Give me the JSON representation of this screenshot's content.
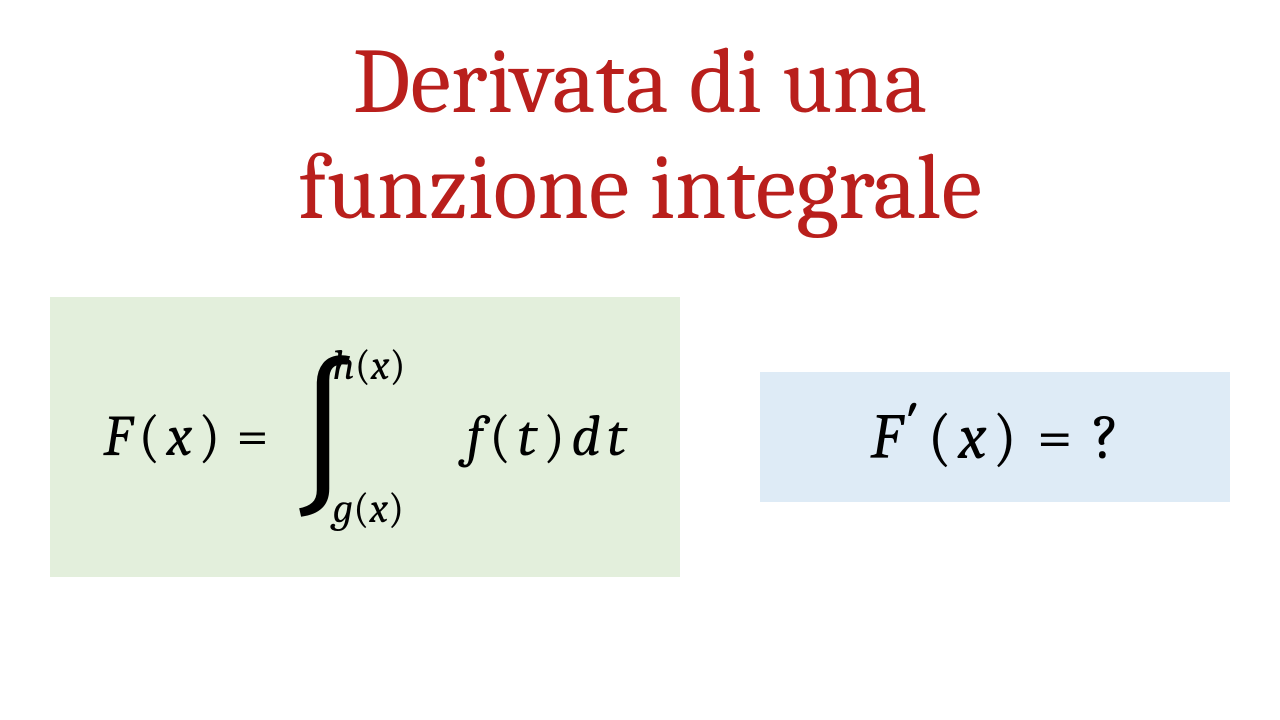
{
  "title": {
    "line1": "Derivata di una",
    "line2": "funzione integrale",
    "color": "#b91f1c",
    "fontsize": 92
  },
  "formula_left": {
    "background_color": "#e3efdc",
    "text_color": "#000000",
    "lhs_F": "F",
    "lhs_open": "(",
    "lhs_x": "x",
    "lhs_close": ")",
    "equals": "=",
    "upper_h": "h",
    "upper_open": "(",
    "upper_x": "x",
    "upper_close": ")",
    "lower_g": "g",
    "lower_open": "(",
    "lower_x": "x",
    "lower_close": ")",
    "integrand_f": "f",
    "integrand_open": "(",
    "integrand_t": "t",
    "integrand_close": ")",
    "integrand_d": "d",
    "integrand_t2": "t"
  },
  "formula_right": {
    "background_color": "#deebf6",
    "text_color": "#000000",
    "lhs_F": "F",
    "prime": "′",
    "lhs_open": "(",
    "lhs_x": "x",
    "lhs_close": ")",
    "equals": "=",
    "question": "?"
  }
}
